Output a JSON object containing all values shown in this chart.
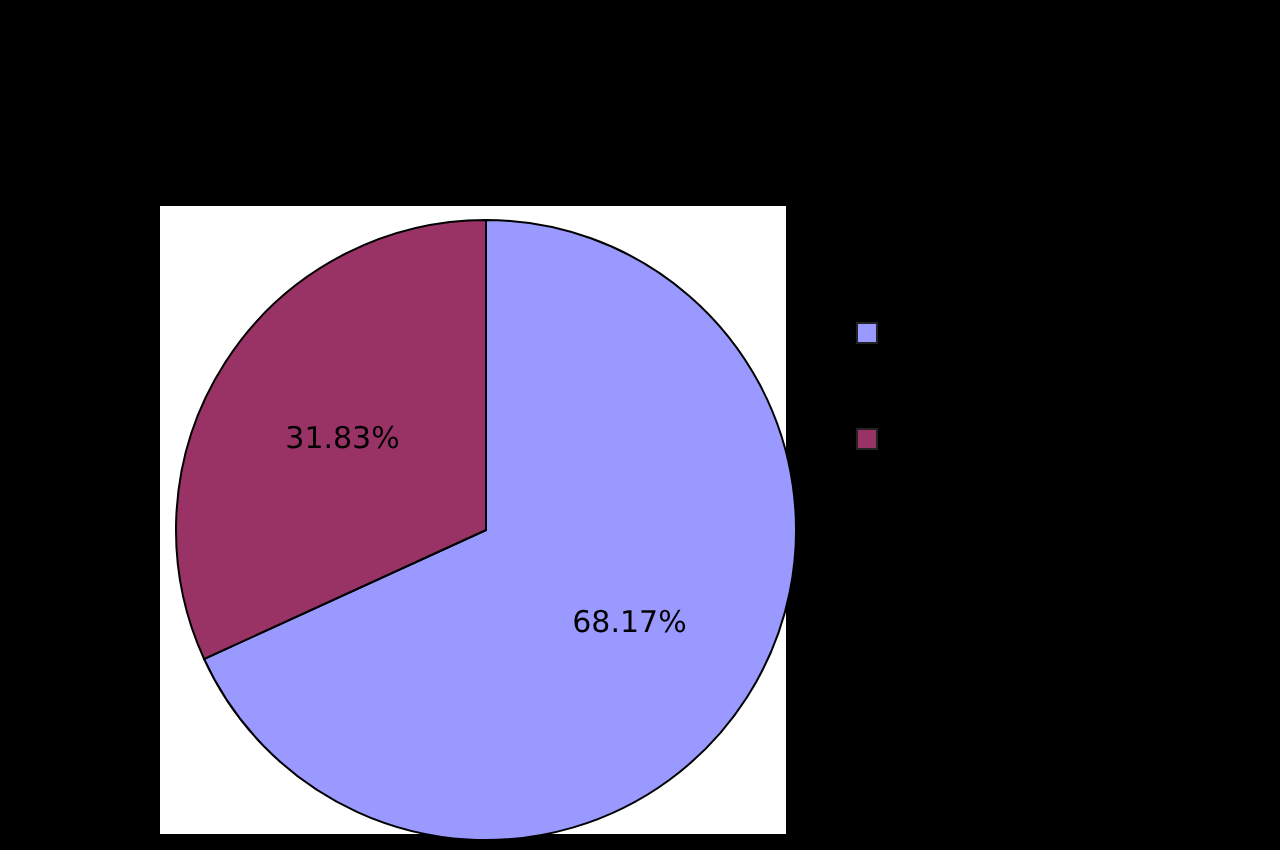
{
  "chart_data": {
    "type": "pie",
    "categories": [
      null,
      null
    ],
    "values": [
      68.17,
      31.83
    ],
    "colors": [
      "#9999ff",
      "#993366"
    ],
    "value_labels": [
      "68.17%",
      "31.83%"
    ]
  }
}
